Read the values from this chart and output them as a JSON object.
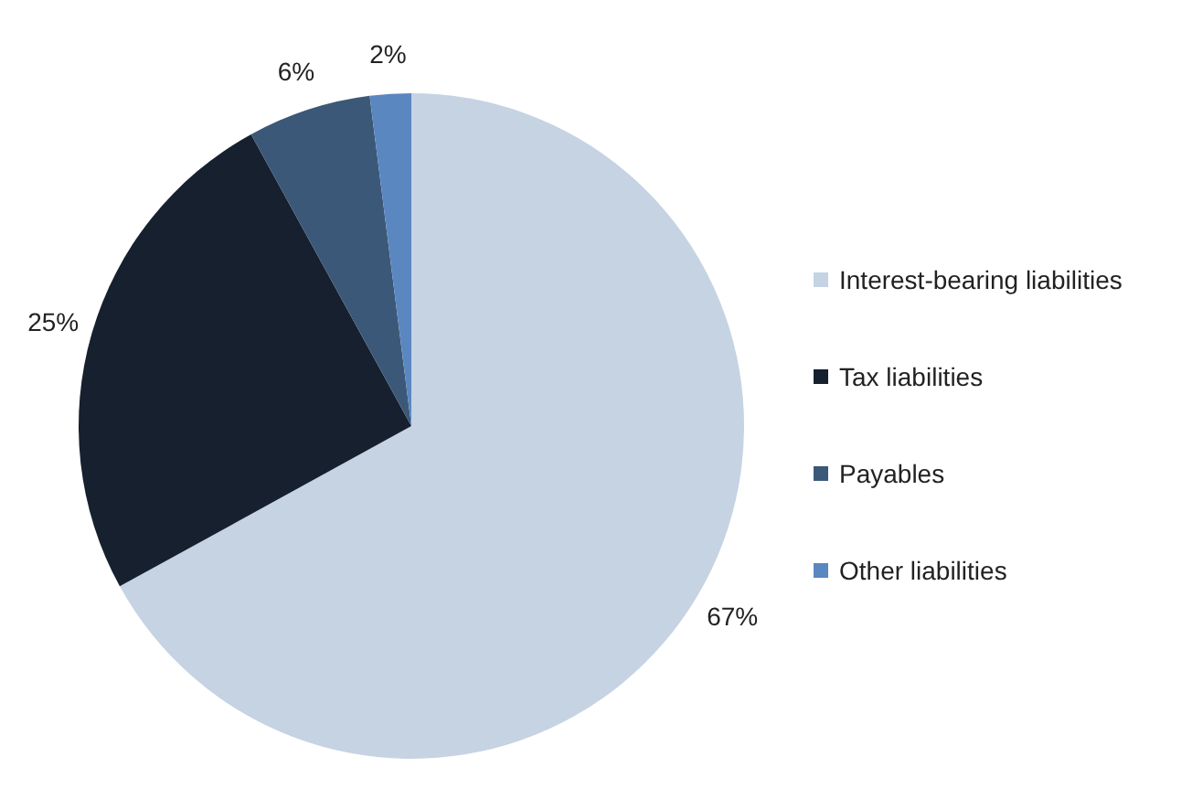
{
  "chart_data": {
    "type": "pie",
    "categories": [
      "Interest-bearing liabilities",
      "Tax liabilities",
      "Payables",
      "Other liabilities"
    ],
    "values": [
      67,
      25,
      6,
      2
    ],
    "colors": [
      "#c5d3e3",
      "#16202e",
      "#3c5878",
      "#5b87c0"
    ],
    "value_labels": [
      "67%",
      "25%",
      "6%",
      "2%"
    ],
    "legend": "right"
  }
}
